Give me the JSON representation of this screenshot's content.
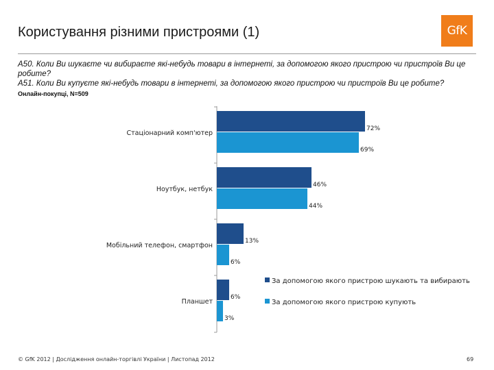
{
  "slide": {
    "title": "Користування різними пристроями (1)",
    "logo_text": "GfK",
    "question_1": "A50. Коли Ви шукаєте чи вибираєте які-небудь товари в інтернеті, за допомогою якого пристрою чи пристроїв Ви це робите?",
    "question_2": "A51. Коли Ви купуєте які-небудь товари в інтернеті, за допомогою якого пристрою чи пристроїв Ви це робите?",
    "sample": "Онлайн-покупці, N=509",
    "footer": "© GfK 2012 | Дослідження онлайн-торгівлі України | Листопад 2012",
    "page_number": "69"
  },
  "colors": {
    "search": "#1f4e8c",
    "buy": "#1b95d2",
    "logo": "#f07d1a"
  },
  "chart_data": {
    "type": "bar",
    "orientation": "horizontal",
    "categories": [
      "Стаціонарний комп'ютер",
      "Ноутбук, нетбук",
      "Мобільний телефон, смартфон",
      "Планшет"
    ],
    "series": [
      {
        "name": "За допомогою якого пристрою шукають та вибирають",
        "values": [
          72,
          46,
          13,
          6
        ],
        "labels": [
          "72%",
          "46%",
          "13%",
          "6%"
        ]
      },
      {
        "name": "За допомогою якого пристрою купують",
        "values": [
          69,
          44,
          6,
          3
        ],
        "labels": [
          "69%",
          "44%",
          "6%",
          "3%"
        ]
      }
    ],
    "xlim": [
      0,
      100
    ],
    "grid": false,
    "legend": "right"
  }
}
